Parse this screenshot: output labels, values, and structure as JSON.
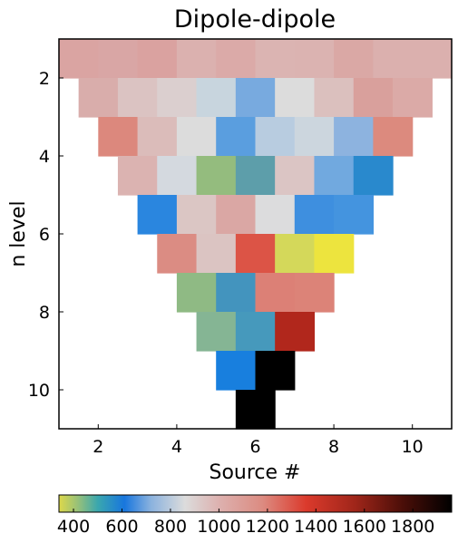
{
  "chart_data": {
    "type": "heatmap",
    "title": "Dipole-dipole",
    "xlabel": "Source #",
    "ylabel": "n level",
    "xlim": [
      1,
      11
    ],
    "ylim": [
      11,
      1
    ],
    "xticks": [
      2,
      4,
      6,
      8,
      10
    ],
    "yticks": [
      2,
      4,
      6,
      8,
      10
    ],
    "cell_x_step": 1,
    "cell_y_step": 1,
    "colorbar": {
      "range": [
        340,
        1960
      ],
      "ticks": [
        400,
        600,
        800,
        1000,
        1200,
        1400,
        1600,
        1800
      ],
      "stops": [
        {
          "value": 340,
          "color": "#ddd84a"
        },
        {
          "value": 420,
          "color": "#95c07a"
        },
        {
          "value": 500,
          "color": "#3aa7ae"
        },
        {
          "value": 610,
          "color": "#1876de"
        },
        {
          "value": 720,
          "color": "#8bb2de"
        },
        {
          "value": 860,
          "color": "#dcdcdc"
        },
        {
          "value": 1000,
          "color": "#ddb1af"
        },
        {
          "value": 1180,
          "color": "#dc8b81"
        },
        {
          "value": 1360,
          "color": "#db3a2c"
        },
        {
          "value": 1560,
          "color": "#a0261a"
        },
        {
          "value": 1760,
          "color": "#4a0e08"
        },
        {
          "value": 1960,
          "color": "#000000"
        }
      ]
    },
    "cells": [
      {
        "x": 1.5,
        "y": 1.5,
        "v": 1060,
        "color": "#daa4a2"
      },
      {
        "x": 2.5,
        "y": 1.5,
        "v": 1040,
        "color": "#d9a6a5"
      },
      {
        "x": 3.5,
        "y": 1.5,
        "v": 1080,
        "color": "#daa2a0"
      },
      {
        "x": 4.5,
        "y": 1.5,
        "v": 1000,
        "color": "#dbb1af"
      },
      {
        "x": 5.5,
        "y": 1.5,
        "v": 1030,
        "color": "#dbaaa8"
      },
      {
        "x": 6.5,
        "y": 1.5,
        "v": 980,
        "color": "#dbb4b2"
      },
      {
        "x": 7.5,
        "y": 1.5,
        "v": 990,
        "color": "#dbb3b1"
      },
      {
        "x": 8.5,
        "y": 1.5,
        "v": 1050,
        "color": "#daa8a5"
      },
      {
        "x": 9.5,
        "y": 1.5,
        "v": 1010,
        "color": "#dbb0ae"
      },
      {
        "x": 10.5,
        "y": 1.5,
        "v": 1000,
        "color": "#dbb0ae"
      },
      {
        "x": 2,
        "y": 2.5,
        "v": 1020,
        "color": "#d9adab"
      },
      {
        "x": 3,
        "y": 2.5,
        "v": 950,
        "color": "#dbc3c2"
      },
      {
        "x": 4,
        "y": 2.5,
        "v": 900,
        "color": "#dbcfcf"
      },
      {
        "x": 5,
        "y": 2.5,
        "v": 800,
        "color": "#c8d5de"
      },
      {
        "x": 6,
        "y": 2.5,
        "v": 680,
        "color": "#78aadf"
      },
      {
        "x": 7,
        "y": 2.5,
        "v": 870,
        "color": "#dcdcdc"
      },
      {
        "x": 8,
        "y": 2.5,
        "v": 950,
        "color": "#dbc0be"
      },
      {
        "x": 9,
        "y": 2.5,
        "v": 1080,
        "color": "#d9a09c"
      },
      {
        "x": 10,
        "y": 2.5,
        "v": 1040,
        "color": "#dbaaa7"
      },
      {
        "x": 2.5,
        "y": 3.5,
        "v": 1190,
        "color": "#dc887d"
      },
      {
        "x": 3.5,
        "y": 3.5,
        "v": 980,
        "color": "#dbbcba"
      },
      {
        "x": 4.5,
        "y": 3.5,
        "v": 870,
        "color": "#dcdcdc"
      },
      {
        "x": 5.5,
        "y": 3.5,
        "v": 650,
        "color": "#5a9edf"
      },
      {
        "x": 6.5,
        "y": 3.5,
        "v": 770,
        "color": "#b8cce0"
      },
      {
        "x": 7.5,
        "y": 3.5,
        "v": 810,
        "color": "#ccd6de"
      },
      {
        "x": 8.5,
        "y": 3.5,
        "v": 730,
        "color": "#8db3df"
      },
      {
        "x": 9.5,
        "y": 3.5,
        "v": 1170,
        "color": "#dc8a7e"
      },
      {
        "x": 3,
        "y": 4.5,
        "v": 1000,
        "color": "#dbb3b1"
      },
      {
        "x": 4,
        "y": 4.5,
        "v": 830,
        "color": "#d4d9df"
      },
      {
        "x": 5,
        "y": 4.5,
        "v": 420,
        "color": "#94bc7e"
      },
      {
        "x": 6,
        "y": 4.5,
        "v": 500,
        "color": "#5d9eaa"
      },
      {
        "x": 7,
        "y": 4.5,
        "v": 950,
        "color": "#dbc5c4"
      },
      {
        "x": 8,
        "y": 4.5,
        "v": 690,
        "color": "#71a9df"
      },
      {
        "x": 9,
        "y": 4.5,
        "v": 590,
        "color": "#2989cd"
      },
      {
        "x": 3.5,
        "y": 5.5,
        "v": 610,
        "color": "#2a86df"
      },
      {
        "x": 4.5,
        "y": 5.5,
        "v": 950,
        "color": "#dbc6c4"
      },
      {
        "x": 5.5,
        "y": 5.5,
        "v": 1040,
        "color": "#daa7a4"
      },
      {
        "x": 6.5,
        "y": 5.5,
        "v": 860,
        "color": "#dcdcdd"
      },
      {
        "x": 7.5,
        "y": 5.5,
        "v": 640,
        "color": "#3e8fdf"
      },
      {
        "x": 8.5,
        "y": 5.5,
        "v": 650,
        "color": "#4494df"
      },
      {
        "x": 4,
        "y": 6.5,
        "v": 1160,
        "color": "#db8c83"
      },
      {
        "x": 5,
        "y": 6.5,
        "v": 960,
        "color": "#dbc4c2"
      },
      {
        "x": 6,
        "y": 6.5,
        "v": 1330,
        "color": "#dc5446"
      },
      {
        "x": 7,
        "y": 6.5,
        "v": 370,
        "color": "#d4d85a"
      },
      {
        "x": 8,
        "y": 6.5,
        "v": 340,
        "color": "#ede43e"
      },
      {
        "x": 4.5,
        "y": 7.5,
        "v": 430,
        "color": "#8fba84"
      },
      {
        "x": 5.5,
        "y": 7.5,
        "v": 540,
        "color": "#4394be"
      },
      {
        "x": 6.5,
        "y": 7.5,
        "v": 1220,
        "color": "#dc8076"
      },
      {
        "x": 7.5,
        "y": 7.5,
        "v": 1200,
        "color": "#dc8378"
      },
      {
        "x": 5,
        "y": 8.5,
        "v": 450,
        "color": "#85b594"
      },
      {
        "x": 6,
        "y": 8.5,
        "v": 540,
        "color": "#4699bc"
      },
      {
        "x": 7,
        "y": 8.5,
        "v": 1540,
        "color": "#b1271c"
      },
      {
        "x": 5.5,
        "y": 9.5,
        "v": 600,
        "color": "#187fde"
      },
      {
        "x": 6.5,
        "y": 9.5,
        "v": 1960,
        "color": "#000000"
      },
      {
        "x": 6,
        "y": 10.5,
        "v": 1960,
        "color": "#000000"
      }
    ]
  }
}
